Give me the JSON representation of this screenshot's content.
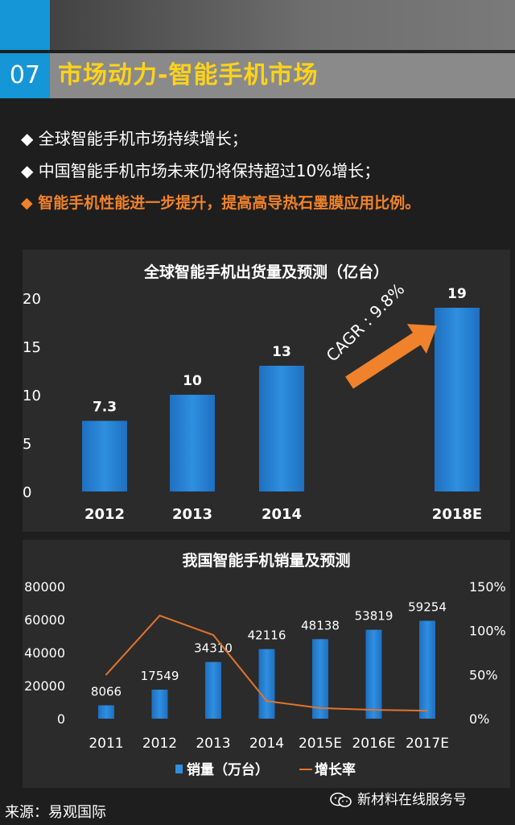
{
  "header": {
    "number": "07",
    "title": "市场动力-智能手机市场"
  },
  "bullets": [
    {
      "text": "◆ 全球智能手机市场持续增长；",
      "highlight": false
    },
    {
      "text": "◆ 中国智能手机市场未来仍将保持超过10%增长；",
      "highlight": false
    },
    {
      "text": "◆ 智能手机性能进一步提升，提高高导热石墨膜应用比例。",
      "highlight": true
    }
  ],
  "chart_data": [
    {
      "type": "bar",
      "title": "全球智能手机出货量及预测（亿台）",
      "categories": [
        "2012",
        "2013",
        "2014",
        "2018E"
      ],
      "values": [
        7.3,
        10,
        13,
        19
      ],
      "value_labels": [
        "7.3",
        "10",
        "13",
        "19"
      ],
      "y_ticks": [
        "0",
        "5",
        "10",
        "15",
        "20"
      ],
      "ylim": [
        0,
        20
      ],
      "annotation": "CAGR : 9.8%",
      "bar_color": "#2f8fe0",
      "arrow_color": "#f0822b",
      "grid": false
    },
    {
      "type": "bar",
      "title": "我国智能手机销量及预测",
      "categories": [
        "2011",
        "2012",
        "2013",
        "2014",
        "2015E",
        "2016E",
        "2017E"
      ],
      "series": [
        {
          "name": "销量（万台）",
          "type": "bar",
          "values": [
            8066,
            17549,
            34310,
            42116,
            48138,
            53819,
            59254
          ],
          "color": "#2f8fe0"
        },
        {
          "name": "增长率",
          "type": "line",
          "axis": "right",
          "values": [
            50,
            117,
            95,
            20,
            12,
            10,
            9
          ],
          "color": "#e2742a"
        }
      ],
      "value_labels": [
        "8066",
        "17549",
        "34310",
        "42116",
        "48138",
        "53819",
        "59254"
      ],
      "y_ticks_left": [
        "0",
        "20000",
        "40000",
        "60000",
        "80000"
      ],
      "ylim_left": [
        0,
        80000
      ],
      "y_ticks_right": [
        "0%",
        "50%",
        "100%",
        "150%"
      ],
      "ylim_right": [
        0,
        150
      ],
      "legend_position": "bottom",
      "grid": false
    }
  ],
  "footer": {
    "source": "来源：易观国际",
    "watermark": "新材料在线服务号",
    "watermark_icon": "wechat-icon"
  }
}
